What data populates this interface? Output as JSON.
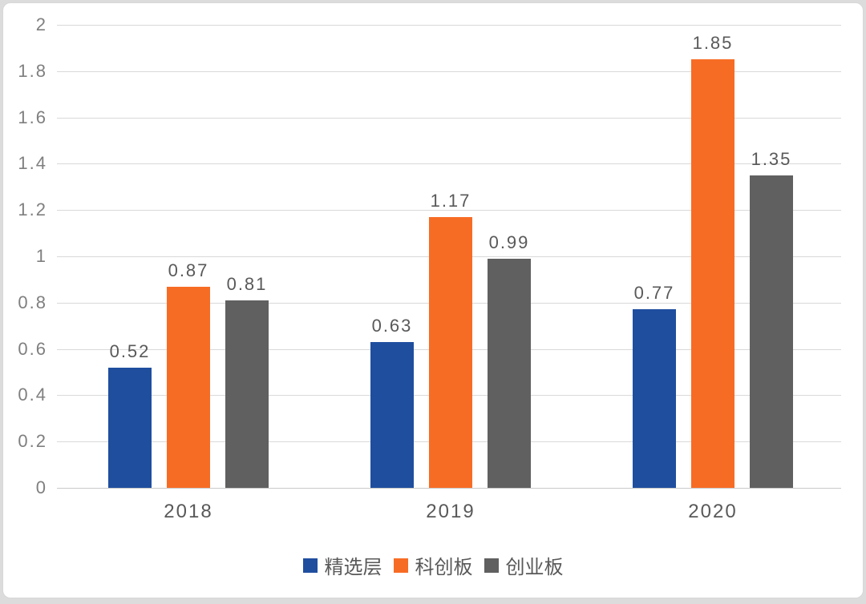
{
  "chart_data": {
    "type": "bar",
    "title": "",
    "xlabel": "",
    "ylabel": "",
    "categories": [
      "2018",
      "2019",
      "2020"
    ],
    "series": [
      {
        "name": "精选层",
        "color": "#1f4e9f",
        "values": [
          0.52,
          0.63,
          0.77
        ]
      },
      {
        "name": "科创板",
        "color": "#f76c24",
        "values": [
          0.87,
          1.17,
          1.85
        ]
      },
      {
        "name": "创业板",
        "color": "#606060",
        "values": [
          0.81,
          0.99,
          1.35
        ]
      }
    ],
    "value_labels": [
      "0.52",
      "0.87",
      "0.81",
      "0.63",
      "1.17",
      "0.99",
      "0.77",
      "1.85",
      "1.35"
    ],
    "ylim": [
      0,
      2
    ],
    "ytick_step": 0.2,
    "yticks": [
      "0",
      "0.2",
      "0.4",
      "0.6",
      "0.8",
      "1",
      "1.2",
      "1.4",
      "1.6",
      "1.8",
      "2"
    ],
    "grid": true,
    "legend_position": "bottom"
  },
  "theme": {
    "page_background": "#dcdcdc",
    "card_background": "#ffffff",
    "gridline_color": "#d9d9d9",
    "axis_text_color": "#7f7f7f",
    "label_text_color": "#595959"
  }
}
